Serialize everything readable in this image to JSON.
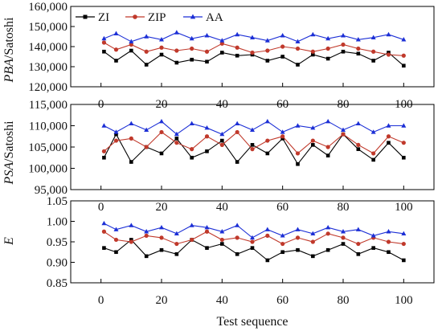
{
  "chart_data": [
    {
      "type": "line",
      "ylabel_italic": "PBA",
      "ylabel_suffix": "/Satoshi",
      "xlabel": "",
      "xlim": [
        -10,
        110
      ],
      "ylim": [
        120000,
        160000
      ],
      "xticks": [
        0,
        20,
        40,
        60,
        80,
        100
      ],
      "yticks": [
        120000,
        130000,
        140000,
        150000,
        160000
      ],
      "ytick_labels": [
        "120,000",
        "130,000",
        "140,000",
        "150,000",
        "160,000"
      ],
      "x": [
        1,
        5,
        10,
        15,
        20,
        25,
        30,
        35,
        40,
        45,
        50,
        55,
        60,
        65,
        70,
        75,
        80,
        85,
        90,
        95,
        100
      ],
      "legend_position": "top-left",
      "series": [
        {
          "name": "ZI",
          "color": "#000000",
          "marker": "square",
          "values": [
            137500,
            133000,
            138000,
            131000,
            136000,
            132000,
            133500,
            132500,
            137000,
            135500,
            136000,
            133000,
            135000,
            131000,
            136000,
            134000,
            137500,
            136500,
            133000,
            137000,
            130500
          ]
        },
        {
          "name": "ZIP",
          "color": "#c0392b",
          "marker": "circle",
          "values": [
            142000,
            138500,
            141000,
            137500,
            139500,
            138000,
            139000,
            137500,
            141500,
            139500,
            137000,
            138000,
            140000,
            139000,
            137500,
            139000,
            141000,
            139000,
            137500,
            136000,
            135500
          ]
        },
        {
          "name": "AA",
          "color": "#1c2fd6",
          "marker": "triangle",
          "values": [
            144000,
            146500,
            142500,
            145000,
            143500,
            147000,
            144000,
            145500,
            143000,
            146000,
            144500,
            143000,
            145500,
            142500,
            146000,
            144000,
            145500,
            143500,
            144500,
            146000,
            143500
          ]
        }
      ]
    },
    {
      "type": "line",
      "ylabel_italic": "PSA",
      "ylabel_suffix": "/Satoshi",
      "xlabel": "",
      "xlim": [
        -10,
        110
      ],
      "ylim": [
        95000,
        115000
      ],
      "xticks": [
        0,
        20,
        40,
        60,
        80,
        100
      ],
      "yticks": [
        95000,
        100000,
        105000,
        110000,
        115000
      ],
      "ytick_labels": [
        "95,000",
        "100,000",
        "105,000",
        "110,000",
        "115,000"
      ],
      "x": [
        1,
        5,
        10,
        15,
        20,
        25,
        30,
        35,
        40,
        45,
        50,
        55,
        60,
        65,
        70,
        75,
        80,
        85,
        90,
        95,
        100
      ],
      "series": [
        {
          "name": "ZI",
          "color": "#000000",
          "marker": "square",
          "values": [
            102500,
            108000,
            101500,
            105000,
            103500,
            107000,
            102500,
            104000,
            106500,
            101500,
            105500,
            103500,
            107000,
            101000,
            105500,
            103000,
            108000,
            104500,
            102000,
            106000,
            102500
          ]
        },
        {
          "name": "ZIP",
          "color": "#c0392b",
          "marker": "circle",
          "values": [
            104000,
            106500,
            107000,
            105000,
            108500,
            106000,
            104500,
            107500,
            105500,
            108500,
            104500,
            106500,
            107500,
            103500,
            106500,
            105000,
            108000,
            105500,
            103500,
            107500,
            106000
          ]
        },
        {
          "name": "AA",
          "color": "#1c2fd6",
          "marker": "triangle",
          "values": [
            110000,
            108500,
            110500,
            109000,
            111000,
            108000,
            110500,
            109500,
            108000,
            110500,
            109000,
            111000,
            108500,
            110000,
            109500,
            111000,
            109000,
            110500,
            108500,
            110000,
            110000
          ]
        }
      ]
    },
    {
      "type": "line",
      "ylabel_italic": "E",
      "ylabel_suffix": "",
      "xlabel": "Test sequence",
      "xlim": [
        -10,
        110
      ],
      "ylim": [
        0.85,
        1.05
      ],
      "xticks": [
        0,
        20,
        40,
        60,
        80,
        100
      ],
      "yticks": [
        0.85,
        0.9,
        0.95,
        1.0,
        1.05
      ],
      "ytick_labels": [
        "0.85",
        "0.90",
        "0.95",
        "1.00",
        "1.05"
      ],
      "x": [
        1,
        5,
        10,
        15,
        20,
        25,
        30,
        35,
        40,
        45,
        50,
        55,
        60,
        65,
        70,
        75,
        80,
        85,
        90,
        95,
        100
      ],
      "series": [
        {
          "name": "ZI",
          "color": "#000000",
          "marker": "square",
          "values": [
            0.935,
            0.925,
            0.955,
            0.915,
            0.93,
            0.92,
            0.955,
            0.935,
            0.945,
            0.92,
            0.935,
            0.905,
            0.925,
            0.93,
            0.915,
            0.93,
            0.945,
            0.92,
            0.935,
            0.925,
            0.905
          ]
        },
        {
          "name": "ZIP",
          "color": "#c0392b",
          "marker": "circle",
          "values": [
            0.975,
            0.955,
            0.95,
            0.965,
            0.96,
            0.945,
            0.955,
            0.975,
            0.955,
            0.96,
            0.95,
            0.965,
            0.945,
            0.96,
            0.95,
            0.97,
            0.96,
            0.945,
            0.96,
            0.95,
            0.945
          ]
        },
        {
          "name": "AA",
          "color": "#1c2fd6",
          "marker": "triangle",
          "values": [
            0.995,
            0.98,
            0.99,
            0.975,
            0.985,
            0.97,
            0.99,
            0.985,
            0.975,
            0.99,
            0.96,
            0.98,
            0.965,
            0.98,
            0.97,
            0.985,
            0.975,
            0.98,
            0.965,
            0.975,
            0.97
          ]
        }
      ]
    }
  ]
}
